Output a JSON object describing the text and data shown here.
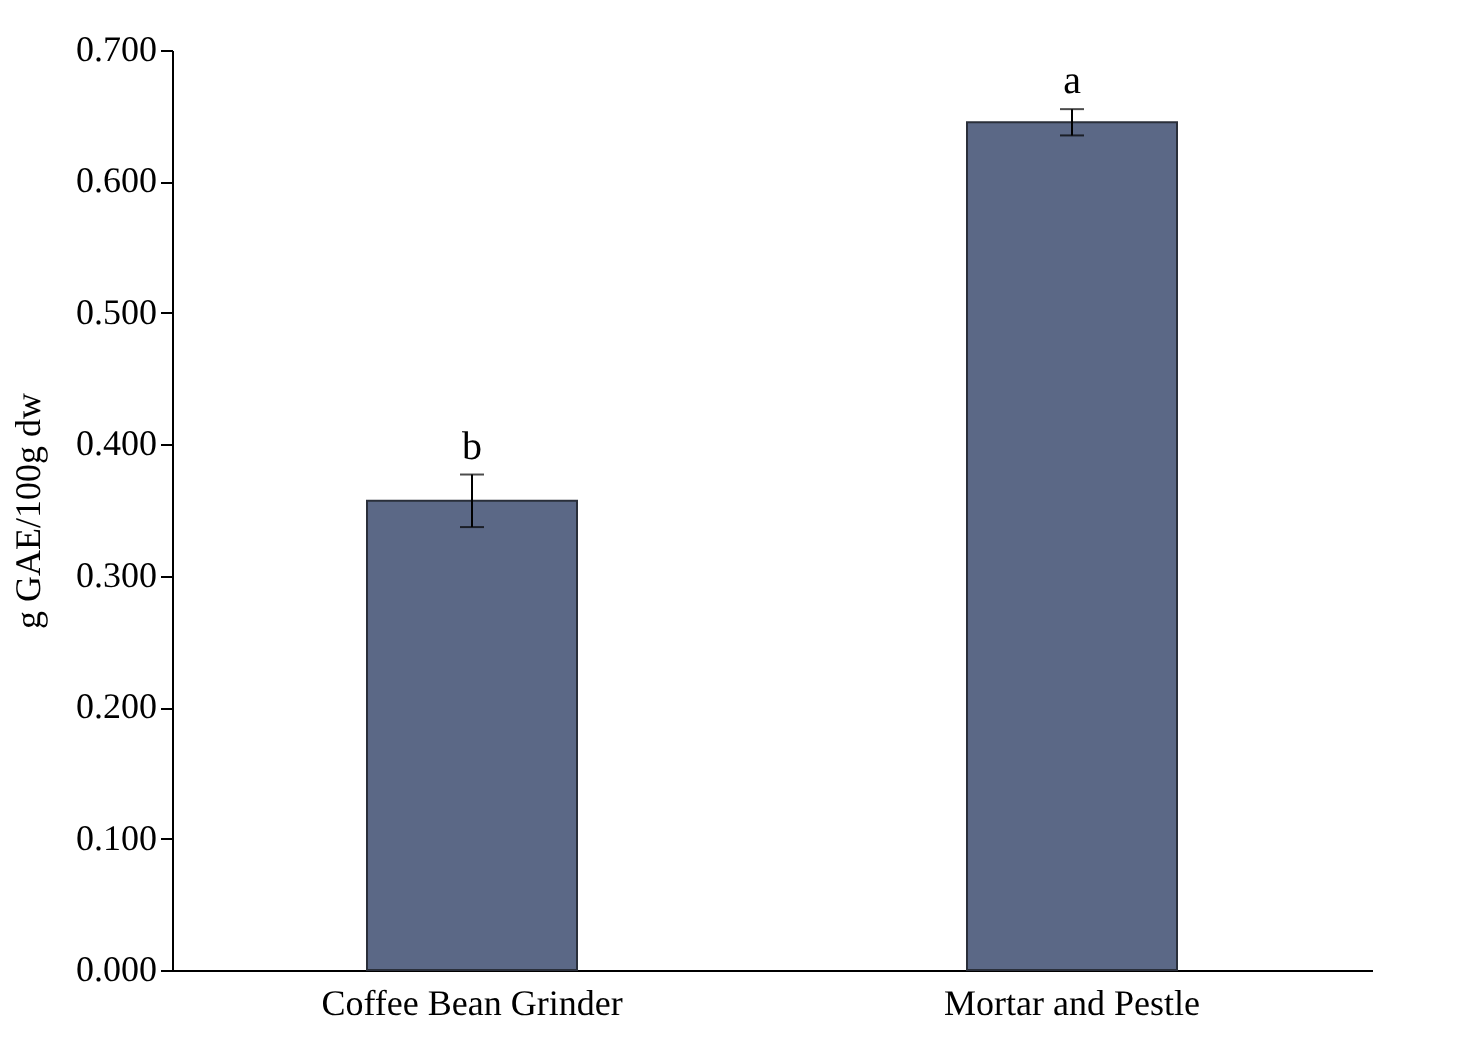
{
  "chart_data": {
    "type": "bar",
    "ylabel": "g GAE/100g dw",
    "categories": [
      "Coffee Bean Grinder",
      "Mortar and Pestle"
    ],
    "values": [
      0.357,
      0.645
    ],
    "color": "#5b6886",
    "errors": [
      0.02,
      0.01
    ],
    "ylim": [
      0,
      0.7
    ],
    "yticks": [
      {
        "value": 0,
        "label": "0.000"
      },
      {
        "value": 0.1,
        "label": "0.100"
      },
      {
        "value": 0.2,
        "label": "0.200"
      },
      {
        "value": 0.3,
        "label": "0.300"
      },
      {
        "value": 0.4,
        "label": "0.400"
      },
      {
        "value": 0.5,
        "label": "0.500"
      },
      {
        "value": 0.6,
        "label": "0.600"
      },
      {
        "value": 0.7,
        "label": "0.700"
      }
    ],
    "annotations": [
      {
        "text": "b",
        "x": "Coffee Bean Grinder",
        "y": 0.377
      },
      {
        "text": "a",
        "x": "Mortar and Pestle",
        "y": 0.655
      }
    ],
    "grid": false
  }
}
